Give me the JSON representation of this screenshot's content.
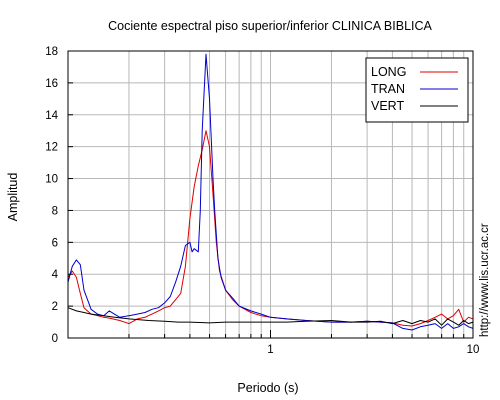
{
  "chart_data": {
    "type": "line",
    "title": "Cociente espectral piso superior/inferior  CLINICA BIBLICA",
    "xlabel": "Periodo (s)",
    "ylabel": "Amplitud",
    "x_scale": "log",
    "xlim": [
      0.1,
      10
    ],
    "ylim": [
      0,
      18
    ],
    "x_ticks": [
      1,
      10
    ],
    "x_tick_labels": [
      "1",
      "10"
    ],
    "y_ticks": [
      0,
      2,
      4,
      6,
      8,
      10,
      12,
      14,
      16,
      18
    ],
    "y_tick_labels": [
      "0",
      "2",
      "4",
      "6",
      "8",
      "10",
      "12",
      "14",
      "16",
      "18"
    ],
    "grid": true,
    "legend_position": "top-right",
    "side_text": "http://www.lis.ucr.ac.cr",
    "series": [
      {
        "name": "LONG",
        "color": "#dd0000",
        "x": [
          0.1,
          0.105,
          0.11,
          0.115,
          0.12,
          0.13,
          0.14,
          0.15,
          0.16,
          0.18,
          0.2,
          0.22,
          0.24,
          0.26,
          0.28,
          0.3,
          0.32,
          0.34,
          0.36,
          0.38,
          0.4,
          0.42,
          0.44,
          0.46,
          0.48,
          0.5,
          0.52,
          0.54,
          0.56,
          0.6,
          0.65,
          0.7,
          0.8,
          0.9,
          1.0,
          1.2,
          1.5,
          2.0,
          2.5,
          3.0,
          3.5,
          4.0,
          4.5,
          5.0,
          5.5,
          6.0,
          6.5,
          7.0,
          7.5,
          8.0,
          8.5,
          9.0,
          9.5,
          10.0
        ],
        "y": [
          3.8,
          4.2,
          3.8,
          2.8,
          1.9,
          1.5,
          1.4,
          1.3,
          1.25,
          1.1,
          0.9,
          1.2,
          1.3,
          1.5,
          1.7,
          1.9,
          2.0,
          2.4,
          2.8,
          4.5,
          7.5,
          9.5,
          10.8,
          11.8,
          13.0,
          12.0,
          9.0,
          6.0,
          4.2,
          3.0,
          2.4,
          2.0,
          1.6,
          1.4,
          1.3,
          1.2,
          1.1,
          1.0,
          1.0,
          1.05,
          1.0,
          0.95,
          0.8,
          0.75,
          0.9,
          1.1,
          1.3,
          1.5,
          1.2,
          1.4,
          1.8,
          1.0,
          1.3,
          1.2
        ]
      },
      {
        "name": "TRAN",
        "color": "#0000cc",
        "x": [
          0.1,
          0.105,
          0.11,
          0.115,
          0.12,
          0.13,
          0.14,
          0.15,
          0.16,
          0.18,
          0.2,
          0.22,
          0.24,
          0.26,
          0.28,
          0.3,
          0.32,
          0.34,
          0.36,
          0.38,
          0.4,
          0.41,
          0.42,
          0.44,
          0.45,
          0.46,
          0.48,
          0.5,
          0.52,
          0.53,
          0.55,
          0.57,
          0.6,
          0.65,
          0.7,
          0.8,
          0.9,
          1.0,
          1.2,
          1.5,
          2.0,
          2.5,
          3.0,
          3.5,
          4.0,
          4.5,
          5.0,
          5.5,
          6.0,
          6.5,
          7.0,
          7.5,
          8.0,
          8.5,
          9.0,
          9.5,
          10.0
        ],
        "y": [
          3.5,
          4.5,
          4.9,
          4.6,
          3.0,
          1.8,
          1.5,
          1.4,
          1.7,
          1.3,
          1.4,
          1.5,
          1.6,
          1.8,
          1.9,
          2.2,
          2.6,
          3.5,
          4.5,
          5.8,
          6.0,
          5.4,
          5.6,
          5.4,
          8.0,
          13.0,
          17.8,
          15.0,
          10.0,
          8.0,
          5.0,
          3.8,
          3.0,
          2.5,
          2.0,
          1.7,
          1.5,
          1.3,
          1.2,
          1.1,
          1.0,
          1.0,
          1.05,
          1.0,
          0.95,
          0.6,
          0.5,
          0.7,
          0.8,
          0.9,
          0.6,
          0.9,
          0.6,
          0.7,
          0.9,
          0.7,
          0.6
        ]
      },
      {
        "name": "VERT",
        "color": "#000000",
        "x": [
          0.1,
          0.11,
          0.12,
          0.13,
          0.15,
          0.17,
          0.2,
          0.25,
          0.3,
          0.35,
          0.4,
          0.5,
          0.6,
          0.7,
          0.8,
          1.0,
          1.2,
          1.5,
          2.0,
          2.5,
          3.0,
          3.5,
          4.0,
          4.5,
          5.0,
          5.5,
          6.0,
          6.5,
          7.0,
          7.5,
          8.0,
          8.5,
          9.0,
          9.5,
          10.0
        ],
        "y": [
          1.9,
          1.7,
          1.6,
          1.5,
          1.4,
          1.3,
          1.2,
          1.1,
          1.05,
          1.0,
          1.0,
          0.95,
          1.0,
          1.0,
          1.0,
          1.0,
          1.0,
          1.05,
          1.1,
          1.0,
          1.0,
          1.05,
          0.9,
          1.1,
          0.9,
          1.1,
          1.0,
          1.2,
          0.8,
          1.2,
          1.0,
          0.8,
          1.1,
          0.9,
          1.0
        ]
      }
    ]
  }
}
